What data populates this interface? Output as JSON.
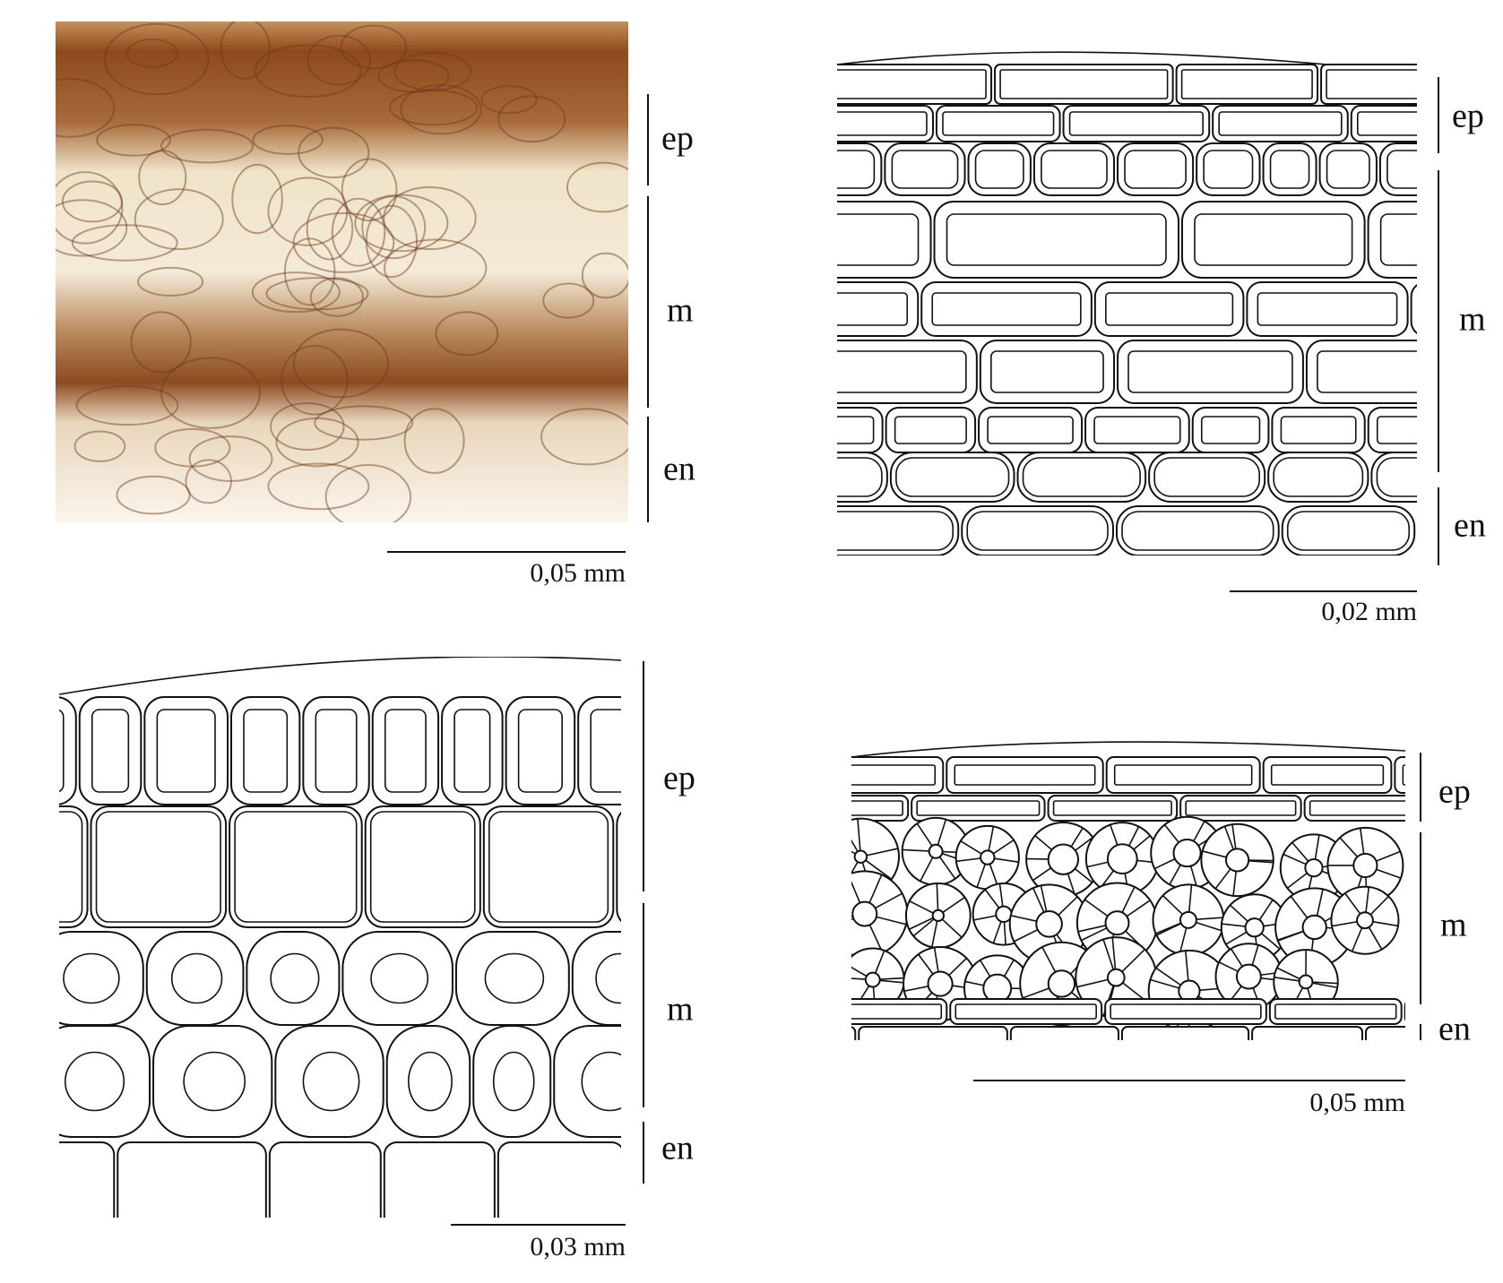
{
  "panels": [
    {
      "labels": [
        "ep",
        "m",
        "en"
      ],
      "scale": "0,05 mm"
    },
    {
      "labels": [
        "ep",
        "m",
        "en"
      ],
      "scale": "0,02 mm"
    },
    {
      "labels": [
        "ep",
        "m",
        "en"
      ],
      "scale": "0,03 mm"
    },
    {
      "labels": [
        "ep",
        "m",
        "en"
      ],
      "scale": "0,05 mm"
    }
  ]
}
